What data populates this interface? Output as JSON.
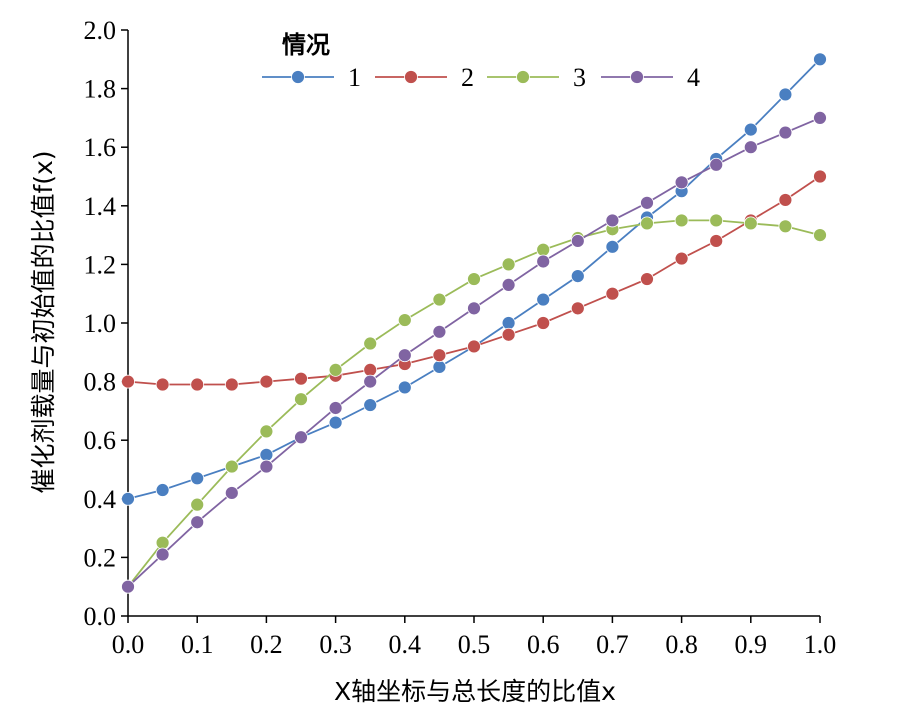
{
  "chart_data": {
    "type": "line",
    "xlabel": "X轴坐标与总长度的比值x",
    "ylabel": "催化剂载量与初始值的比值f(x)",
    "xlim": [
      0,
      1.0
    ],
    "ylim": [
      0,
      2.0
    ],
    "x_ticks": [
      "0.0",
      "0.1",
      "0.2",
      "0.3",
      "0.4",
      "0.5",
      "0.6",
      "0.7",
      "0.8",
      "0.9",
      "1.0"
    ],
    "y_ticks": [
      "0.0",
      "0.2",
      "0.4",
      "0.6",
      "0.8",
      "1.0",
      "1.2",
      "1.4",
      "1.6",
      "1.8",
      "2.0"
    ],
    "legend": {
      "title": "情况",
      "position": "top"
    },
    "x": [
      0.0,
      0.05,
      0.1,
      0.15,
      0.2,
      0.25,
      0.3,
      0.35,
      0.4,
      0.45,
      0.5,
      0.55,
      0.6,
      0.65,
      0.7,
      0.75,
      0.8,
      0.85,
      0.9,
      0.95,
      1.0
    ],
    "series": [
      {
        "name": "1",
        "color": "#4a7fc1",
        "values": [
          0.4,
          0.43,
          0.47,
          0.51,
          0.55,
          0.61,
          0.66,
          0.72,
          0.78,
          0.85,
          0.92,
          1.0,
          1.08,
          1.16,
          1.26,
          1.36,
          1.45,
          1.56,
          1.66,
          1.78,
          1.9
        ]
      },
      {
        "name": "2",
        "color": "#c0504d",
        "values": [
          0.8,
          0.79,
          0.79,
          0.79,
          0.8,
          0.81,
          0.82,
          0.84,
          0.86,
          0.89,
          0.92,
          0.96,
          1.0,
          1.05,
          1.1,
          1.15,
          1.22,
          1.28,
          1.35,
          1.42,
          1.5
        ]
      },
      {
        "name": "3",
        "color": "#9bbb59",
        "values": [
          0.1,
          0.25,
          0.38,
          0.51,
          0.63,
          0.74,
          0.84,
          0.93,
          1.01,
          1.08,
          1.15,
          1.2,
          1.25,
          1.29,
          1.32,
          1.34,
          1.35,
          1.35,
          1.34,
          1.33,
          1.3
        ]
      },
      {
        "name": "4",
        "color": "#8064a2",
        "values": [
          0.1,
          0.21,
          0.32,
          0.42,
          0.51,
          0.61,
          0.71,
          0.8,
          0.89,
          0.97,
          1.05,
          1.13,
          1.21,
          1.28,
          1.35,
          1.41,
          1.48,
          1.54,
          1.6,
          1.65,
          1.7
        ]
      }
    ]
  }
}
